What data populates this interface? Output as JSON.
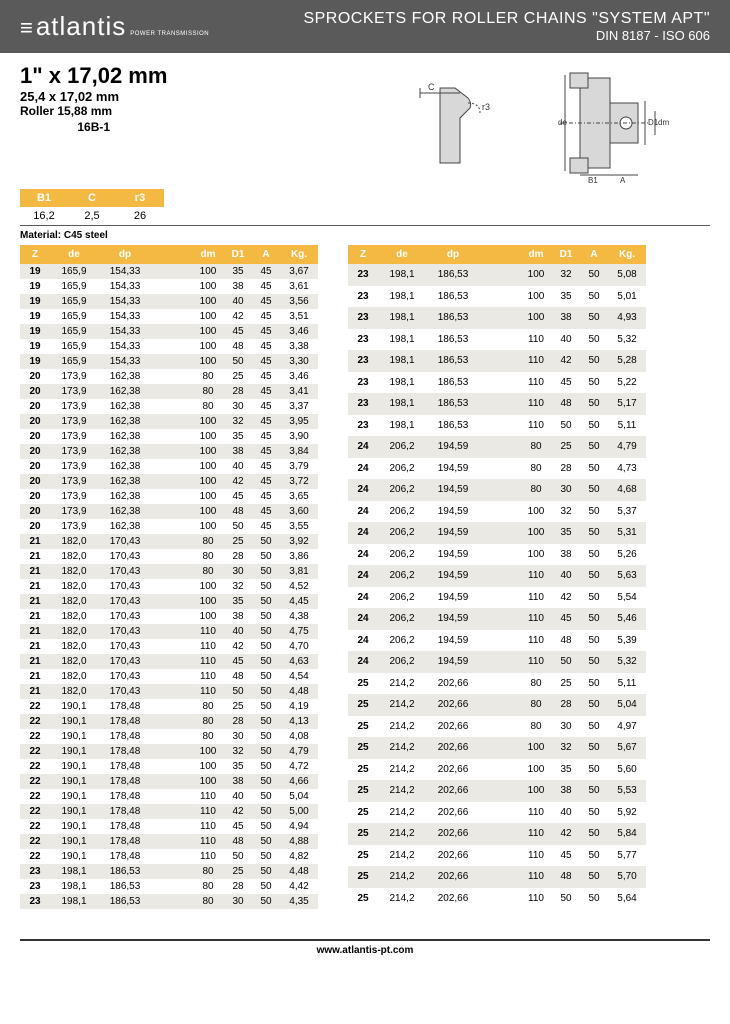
{
  "header": {
    "logo": "atlantis",
    "logo_sub": "POWER TRANSMISSION",
    "title": "SPROCKETS FOR ROLLER CHAINS \"SYSTEM APT\"",
    "subtitle": "DIN 8187 - ISO 606"
  },
  "specs": {
    "size_main": "1\" x 17,02 mm",
    "size_sub": "25,4 x 17,02 mm",
    "roller": "Roller 15,88 mm",
    "model": "16B-1"
  },
  "dims": {
    "headers": [
      "B1",
      "C",
      "r3"
    ],
    "values": [
      "16,2",
      "2,5",
      "26"
    ]
  },
  "material": "Material: C45 steel",
  "table_headers": [
    "Z",
    "de",
    "dp",
    "",
    "dm",
    "D1",
    "A",
    "Kg."
  ],
  "table_left": [
    [
      "19",
      "165,9",
      "154,33",
      "",
      "100",
      "35",
      "45",
      "3,67"
    ],
    [
      "19",
      "165,9",
      "154,33",
      "",
      "100",
      "38",
      "45",
      "3,61"
    ],
    [
      "19",
      "165,9",
      "154,33",
      "",
      "100",
      "40",
      "45",
      "3,56"
    ],
    [
      "19",
      "165,9",
      "154,33",
      "",
      "100",
      "42",
      "45",
      "3,51"
    ],
    [
      "19",
      "165,9",
      "154,33",
      "",
      "100",
      "45",
      "45",
      "3,46"
    ],
    [
      "19",
      "165,9",
      "154,33",
      "",
      "100",
      "48",
      "45",
      "3,38"
    ],
    [
      "19",
      "165,9",
      "154,33",
      "",
      "100",
      "50",
      "45",
      "3,30"
    ],
    [
      "20",
      "173,9",
      "162,38",
      "",
      "80",
      "25",
      "45",
      "3,46"
    ],
    [
      "20",
      "173,9",
      "162,38",
      "",
      "80",
      "28",
      "45",
      "3,41"
    ],
    [
      "20",
      "173,9",
      "162,38",
      "",
      "80",
      "30",
      "45",
      "3,37"
    ],
    [
      "20",
      "173,9",
      "162,38",
      "",
      "100",
      "32",
      "45",
      "3,95"
    ],
    [
      "20",
      "173,9",
      "162,38",
      "",
      "100",
      "35",
      "45",
      "3,90"
    ],
    [
      "20",
      "173,9",
      "162,38",
      "",
      "100",
      "38",
      "45",
      "3,84"
    ],
    [
      "20",
      "173,9",
      "162,38",
      "",
      "100",
      "40",
      "45",
      "3,79"
    ],
    [
      "20",
      "173,9",
      "162,38",
      "",
      "100",
      "42",
      "45",
      "3,72"
    ],
    [
      "20",
      "173,9",
      "162,38",
      "",
      "100",
      "45",
      "45",
      "3,65"
    ],
    [
      "20",
      "173,9",
      "162,38",
      "",
      "100",
      "48",
      "45",
      "3,60"
    ],
    [
      "20",
      "173,9",
      "162,38",
      "",
      "100",
      "50",
      "45",
      "3,55"
    ],
    [
      "21",
      "182,0",
      "170,43",
      "",
      "80",
      "25",
      "50",
      "3,92"
    ],
    [
      "21",
      "182,0",
      "170,43",
      "",
      "80",
      "28",
      "50",
      "3,86"
    ],
    [
      "21",
      "182,0",
      "170,43",
      "",
      "80",
      "30",
      "50",
      "3,81"
    ],
    [
      "21",
      "182,0",
      "170,43",
      "",
      "100",
      "32",
      "50",
      "4,52"
    ],
    [
      "21",
      "182,0",
      "170,43",
      "",
      "100",
      "35",
      "50",
      "4,45"
    ],
    [
      "21",
      "182,0",
      "170,43",
      "",
      "100",
      "38",
      "50",
      "4,38"
    ],
    [
      "21",
      "182,0",
      "170,43",
      "",
      "110",
      "40",
      "50",
      "4,75"
    ],
    [
      "21",
      "182,0",
      "170,43",
      "",
      "110",
      "42",
      "50",
      "4,70"
    ],
    [
      "21",
      "182,0",
      "170,43",
      "",
      "110",
      "45",
      "50",
      "4,63"
    ],
    [
      "21",
      "182,0",
      "170,43",
      "",
      "110",
      "48",
      "50",
      "4,54"
    ],
    [
      "21",
      "182,0",
      "170,43",
      "",
      "110",
      "50",
      "50",
      "4,48"
    ],
    [
      "22",
      "190,1",
      "178,48",
      "",
      "80",
      "25",
      "50",
      "4,19"
    ],
    [
      "22",
      "190,1",
      "178,48",
      "",
      "80",
      "28",
      "50",
      "4,13"
    ],
    [
      "22",
      "190,1",
      "178,48",
      "",
      "80",
      "30",
      "50",
      "4,08"
    ],
    [
      "22",
      "190,1",
      "178,48",
      "",
      "100",
      "32",
      "50",
      "4,79"
    ],
    [
      "22",
      "190,1",
      "178,48",
      "",
      "100",
      "35",
      "50",
      "4,72"
    ],
    [
      "22",
      "190,1",
      "178,48",
      "",
      "100",
      "38",
      "50",
      "4,66"
    ],
    [
      "22",
      "190,1",
      "178,48",
      "",
      "110",
      "40",
      "50",
      "5,04"
    ],
    [
      "22",
      "190,1",
      "178,48",
      "",
      "110",
      "42",
      "50",
      "5,00"
    ],
    [
      "22",
      "190,1",
      "178,48",
      "",
      "110",
      "45",
      "50",
      "4,94"
    ],
    [
      "22",
      "190,1",
      "178,48",
      "",
      "110",
      "48",
      "50",
      "4,88"
    ],
    [
      "22",
      "190,1",
      "178,48",
      "",
      "110",
      "50",
      "50",
      "4,82"
    ],
    [
      "23",
      "198,1",
      "186,53",
      "",
      "80",
      "25",
      "50",
      "4,48"
    ],
    [
      "23",
      "198,1",
      "186,53",
      "",
      "80",
      "28",
      "50",
      "4,42"
    ],
    [
      "23",
      "198,1",
      "186,53",
      "",
      "80",
      "30",
      "50",
      "4,35"
    ]
  ],
  "table_right": [
    [
      "23",
      "198,1",
      "186,53",
      "",
      "100",
      "32",
      "50",
      "5,08"
    ],
    [
      "23",
      "198,1",
      "186,53",
      "",
      "100",
      "35",
      "50",
      "5,01"
    ],
    [
      "23",
      "198,1",
      "186,53",
      "",
      "100",
      "38",
      "50",
      "4,93"
    ],
    [
      "23",
      "198,1",
      "186,53",
      "",
      "110",
      "40",
      "50",
      "5,32"
    ],
    [
      "23",
      "198,1",
      "186,53",
      "",
      "110",
      "42",
      "50",
      "5,28"
    ],
    [
      "23",
      "198,1",
      "186,53",
      "",
      "110",
      "45",
      "50",
      "5,22"
    ],
    [
      "23",
      "198,1",
      "186,53",
      "",
      "110",
      "48",
      "50",
      "5,17"
    ],
    [
      "23",
      "198,1",
      "186,53",
      "",
      "110",
      "50",
      "50",
      "5,11"
    ],
    [
      "24",
      "206,2",
      "194,59",
      "",
      "80",
      "25",
      "50",
      "4,79"
    ],
    [
      "24",
      "206,2",
      "194,59",
      "",
      "80",
      "28",
      "50",
      "4,73"
    ],
    [
      "24",
      "206,2",
      "194,59",
      "",
      "80",
      "30",
      "50",
      "4,68"
    ],
    [
      "24",
      "206,2",
      "194,59",
      "",
      "100",
      "32",
      "50",
      "5,37"
    ],
    [
      "24",
      "206,2",
      "194,59",
      "",
      "100",
      "35",
      "50",
      "5,31"
    ],
    [
      "24",
      "206,2",
      "194,59",
      "",
      "100",
      "38",
      "50",
      "5,26"
    ],
    [
      "24",
      "206,2",
      "194,59",
      "",
      "110",
      "40",
      "50",
      "5,63"
    ],
    [
      "24",
      "206,2",
      "194,59",
      "",
      "110",
      "42",
      "50",
      "5,54"
    ],
    [
      "24",
      "206,2",
      "194,59",
      "",
      "110",
      "45",
      "50",
      "5,46"
    ],
    [
      "24",
      "206,2",
      "194,59",
      "",
      "110",
      "48",
      "50",
      "5,39"
    ],
    [
      "24",
      "206,2",
      "194,59",
      "",
      "110",
      "50",
      "50",
      "5,32"
    ],
    [
      "25",
      "214,2",
      "202,66",
      "",
      "80",
      "25",
      "50",
      "5,11"
    ],
    [
      "25",
      "214,2",
      "202,66",
      "",
      "80",
      "28",
      "50",
      "5,04"
    ],
    [
      "25",
      "214,2",
      "202,66",
      "",
      "80",
      "30",
      "50",
      "4,97"
    ],
    [
      "25",
      "214,2",
      "202,66",
      "",
      "100",
      "32",
      "50",
      "5,67"
    ],
    [
      "25",
      "214,2",
      "202,66",
      "",
      "100",
      "35",
      "50",
      "5,60"
    ],
    [
      "25",
      "214,2",
      "202,66",
      "",
      "100",
      "38",
      "50",
      "5,53"
    ],
    [
      "25",
      "214,2",
      "202,66",
      "",
      "110",
      "40",
      "50",
      "5,92"
    ],
    [
      "25",
      "214,2",
      "202,66",
      "",
      "110",
      "42",
      "50",
      "5,84"
    ],
    [
      "25",
      "214,2",
      "202,66",
      "",
      "110",
      "45",
      "50",
      "5,77"
    ],
    [
      "25",
      "214,2",
      "202,66",
      "",
      "110",
      "48",
      "50",
      "5,70"
    ],
    [
      "25",
      "214,2",
      "202,66",
      "",
      "110",
      "50",
      "50",
      "5,64"
    ]
  ],
  "colors": {
    "header_bg": "#5a5a5a",
    "accent": "#f4b942",
    "row_odd": "#ebe9e4"
  },
  "footer": "www.atlantis-pt.com"
}
